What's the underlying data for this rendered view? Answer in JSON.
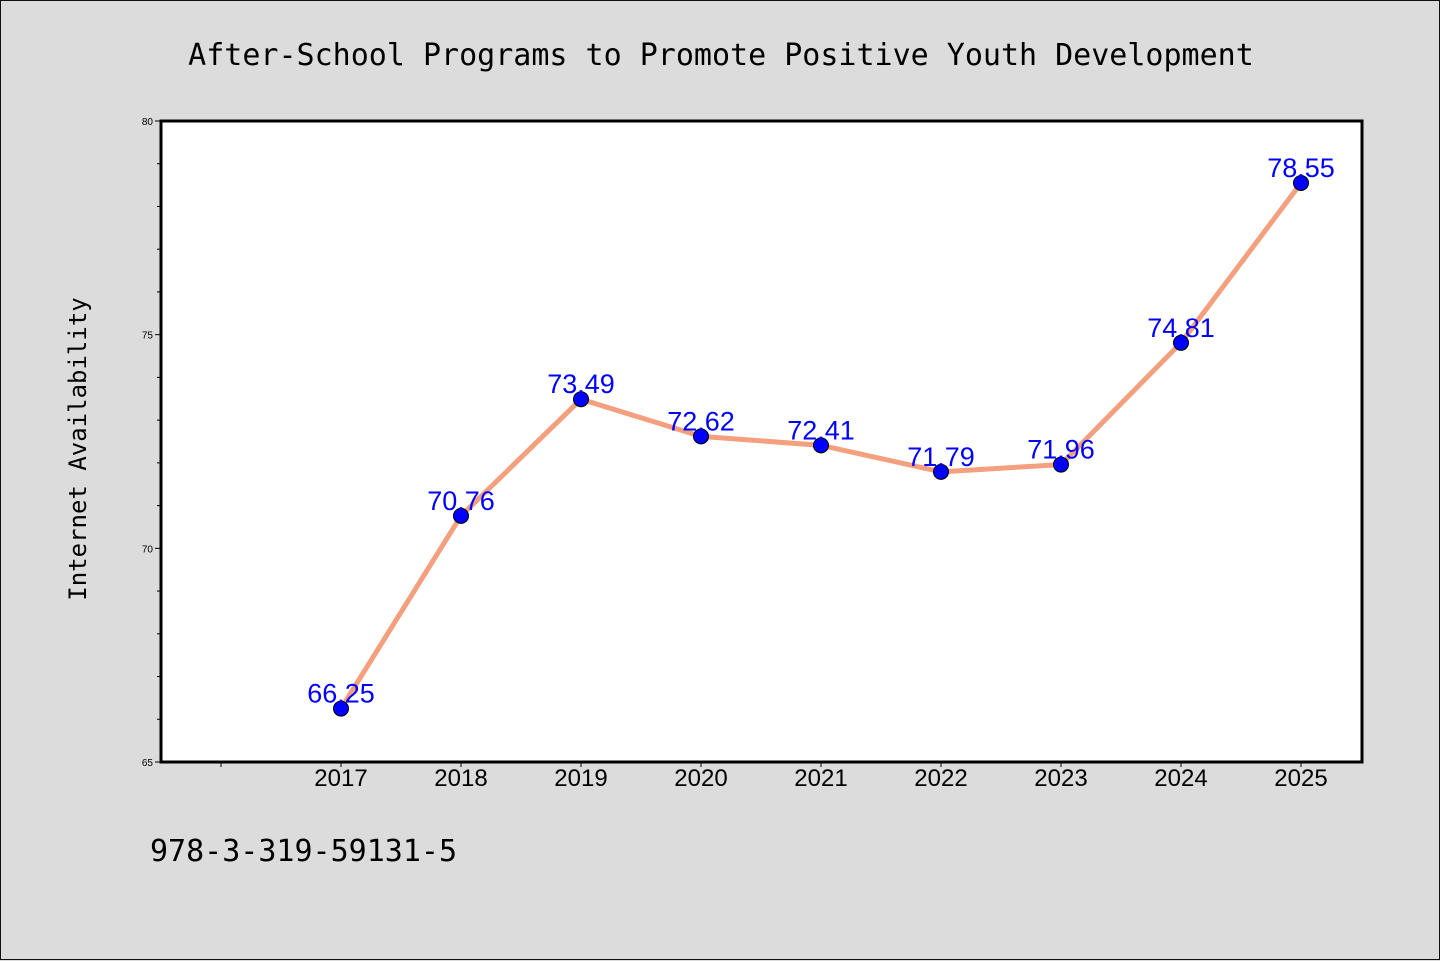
{
  "chart_data": {
    "type": "line",
    "title": "After-School Programs to Promote Positive Youth Development",
    "xlabel": "",
    "ylabel": "Internet Availability",
    "categories": [
      "2017",
      "2018",
      "2019",
      "2020",
      "2021",
      "2022",
      "2023",
      "2024",
      "2025"
    ],
    "series": [
      {
        "values": [
          66.25,
          70.76,
          73.49,
          72.62,
          72.41,
          71.79,
          71.96,
          74.81,
          78.55
        ],
        "labels": [
          "66.25",
          "70.76",
          "73.49",
          "72.62",
          "72.41",
          "71.79",
          "71.96",
          "74.81",
          "78.55"
        ],
        "line_color": "#f4a07e",
        "marker_color": "#0000ff"
      }
    ],
    "ylim": [
      65,
      80
    ],
    "yticks": [
      65,
      70,
      75,
      80
    ],
    "ytick_labels": [
      "65",
      "70",
      "75",
      "80"
    ],
    "grid": false,
    "legend": "none"
  },
  "footer": {
    "isbn": "978-3-319-59131-5"
  }
}
